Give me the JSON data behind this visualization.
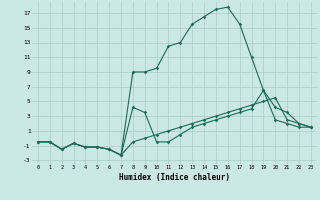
{
  "xlabel": "Humidex (Indice chaleur)",
  "bg_color": "#cce8e4",
  "grid_color": "#aaccc8",
  "line_color": "#1a6b5a",
  "xlim": [
    -0.5,
    23.5
  ],
  "ylim": [
    -3.5,
    18.5
  ],
  "xtick_vals": [
    0,
    1,
    2,
    3,
    4,
    5,
    6,
    7,
    8,
    9,
    10,
    11,
    12,
    13,
    14,
    15,
    16,
    17,
    18,
    19,
    20,
    21,
    22,
    23
  ],
  "ytick_vals": [
    -3,
    -1,
    1,
    3,
    5,
    7,
    9,
    11,
    13,
    15,
    17
  ],
  "line1_x": [
    0,
    1,
    2,
    3,
    4,
    5,
    6,
    7,
    8,
    9,
    10,
    11,
    12,
    13,
    14,
    15,
    16,
    17,
    18,
    19,
    20,
    21,
    22,
    23
  ],
  "line1_y": [
    -0.5,
    -0.5,
    -1.5,
    -0.7,
    -1.2,
    -1.2,
    -1.5,
    -2.3,
    9.0,
    9.0,
    9.5,
    12.5,
    13.0,
    15.5,
    16.5,
    17.5,
    17.8,
    15.5,
    11.0,
    6.5,
    4.2,
    3.5,
    2.0,
    1.5
  ],
  "line2_x": [
    0,
    1,
    2,
    3,
    4,
    5,
    6,
    7,
    8,
    9,
    10,
    11,
    12,
    13,
    14,
    15,
    16,
    17,
    18,
    19,
    20,
    21,
    22,
    23
  ],
  "line2_y": [
    -0.5,
    -0.5,
    -1.5,
    -0.7,
    -1.2,
    -1.2,
    -1.5,
    -2.3,
    4.2,
    3.5,
    -0.5,
    -0.5,
    0.5,
    1.5,
    2.0,
    2.5,
    3.0,
    3.5,
    4.0,
    6.5,
    2.5,
    2.0,
    1.5,
    1.5
  ],
  "line3_x": [
    0,
    1,
    2,
    3,
    4,
    5,
    6,
    7,
    8,
    9,
    10,
    11,
    12,
    13,
    14,
    15,
    16,
    17,
    18,
    19,
    20,
    21,
    22,
    23
  ],
  "line3_y": [
    -0.5,
    -0.5,
    -1.5,
    -0.7,
    -1.2,
    -1.2,
    -1.5,
    -2.3,
    -0.5,
    0.0,
    0.5,
    1.0,
    1.5,
    2.0,
    2.5,
    3.0,
    3.5,
    4.0,
    4.5,
    5.0,
    5.5,
    2.5,
    2.0,
    1.5
  ]
}
